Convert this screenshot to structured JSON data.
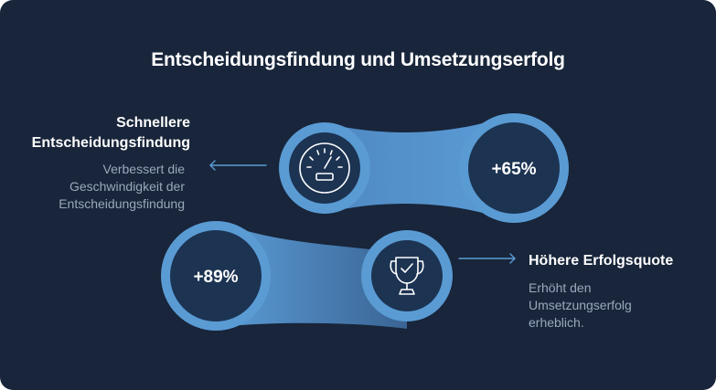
{
  "title": "Entscheidungsfindung und Umsetzungserfolg",
  "item_top": {
    "heading_line1": "Schnellere",
    "heading_line2": "Entscheidungsfindung",
    "desc_lines": [
      "Verbessert die",
      "Geschwindigkeit der",
      "Entscheidungsfindung"
    ],
    "stat": "+65%",
    "icon": "speedometer-icon"
  },
  "item_bottom": {
    "heading": "Höhere Erfolgsquote",
    "desc_lines": [
      "Erhöht den",
      "Umsetzungserfolg",
      "erheblich."
    ],
    "stat": "+89%",
    "icon": "trophy-icon"
  },
  "colors": {
    "background": "#18253a",
    "ring": "#5a9bd4",
    "bridge": "#3e6e9f",
    "inner": "#1c3352",
    "text_muted": "#9aa9bd"
  }
}
